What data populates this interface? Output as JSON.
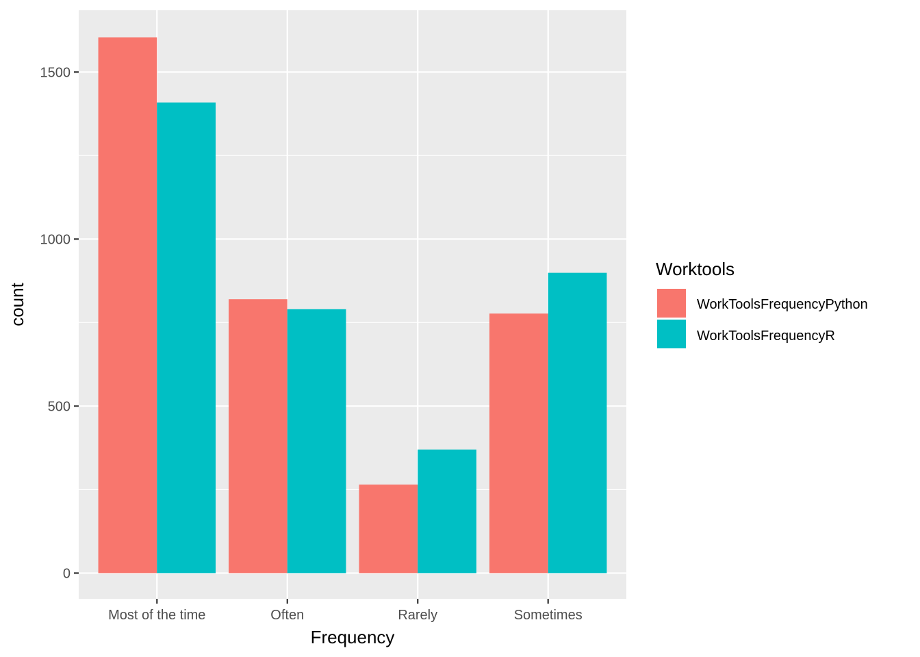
{
  "chart_data": {
    "type": "bar",
    "xlabel": "Frequency",
    "ylabel": "count",
    "categories": [
      "Most of the time",
      "Often",
      "Rarely",
      "Sometimes"
    ],
    "series": [
      {
        "name": "WorkToolsFrequencyPython",
        "color": "#F8766D",
        "values": [
          1604,
          820,
          265,
          777
        ]
      },
      {
        "name": "WorkToolsFrequencyR",
        "color": "#00BFC4",
        "values": [
          1409,
          790,
          370,
          899
        ]
      }
    ],
    "yticks": [
      0,
      500,
      1000,
      1500
    ],
    "ylim": [
      -77,
      1685
    ],
    "legend": {
      "title": "Worktools",
      "position": "right"
    },
    "grid": true
  }
}
